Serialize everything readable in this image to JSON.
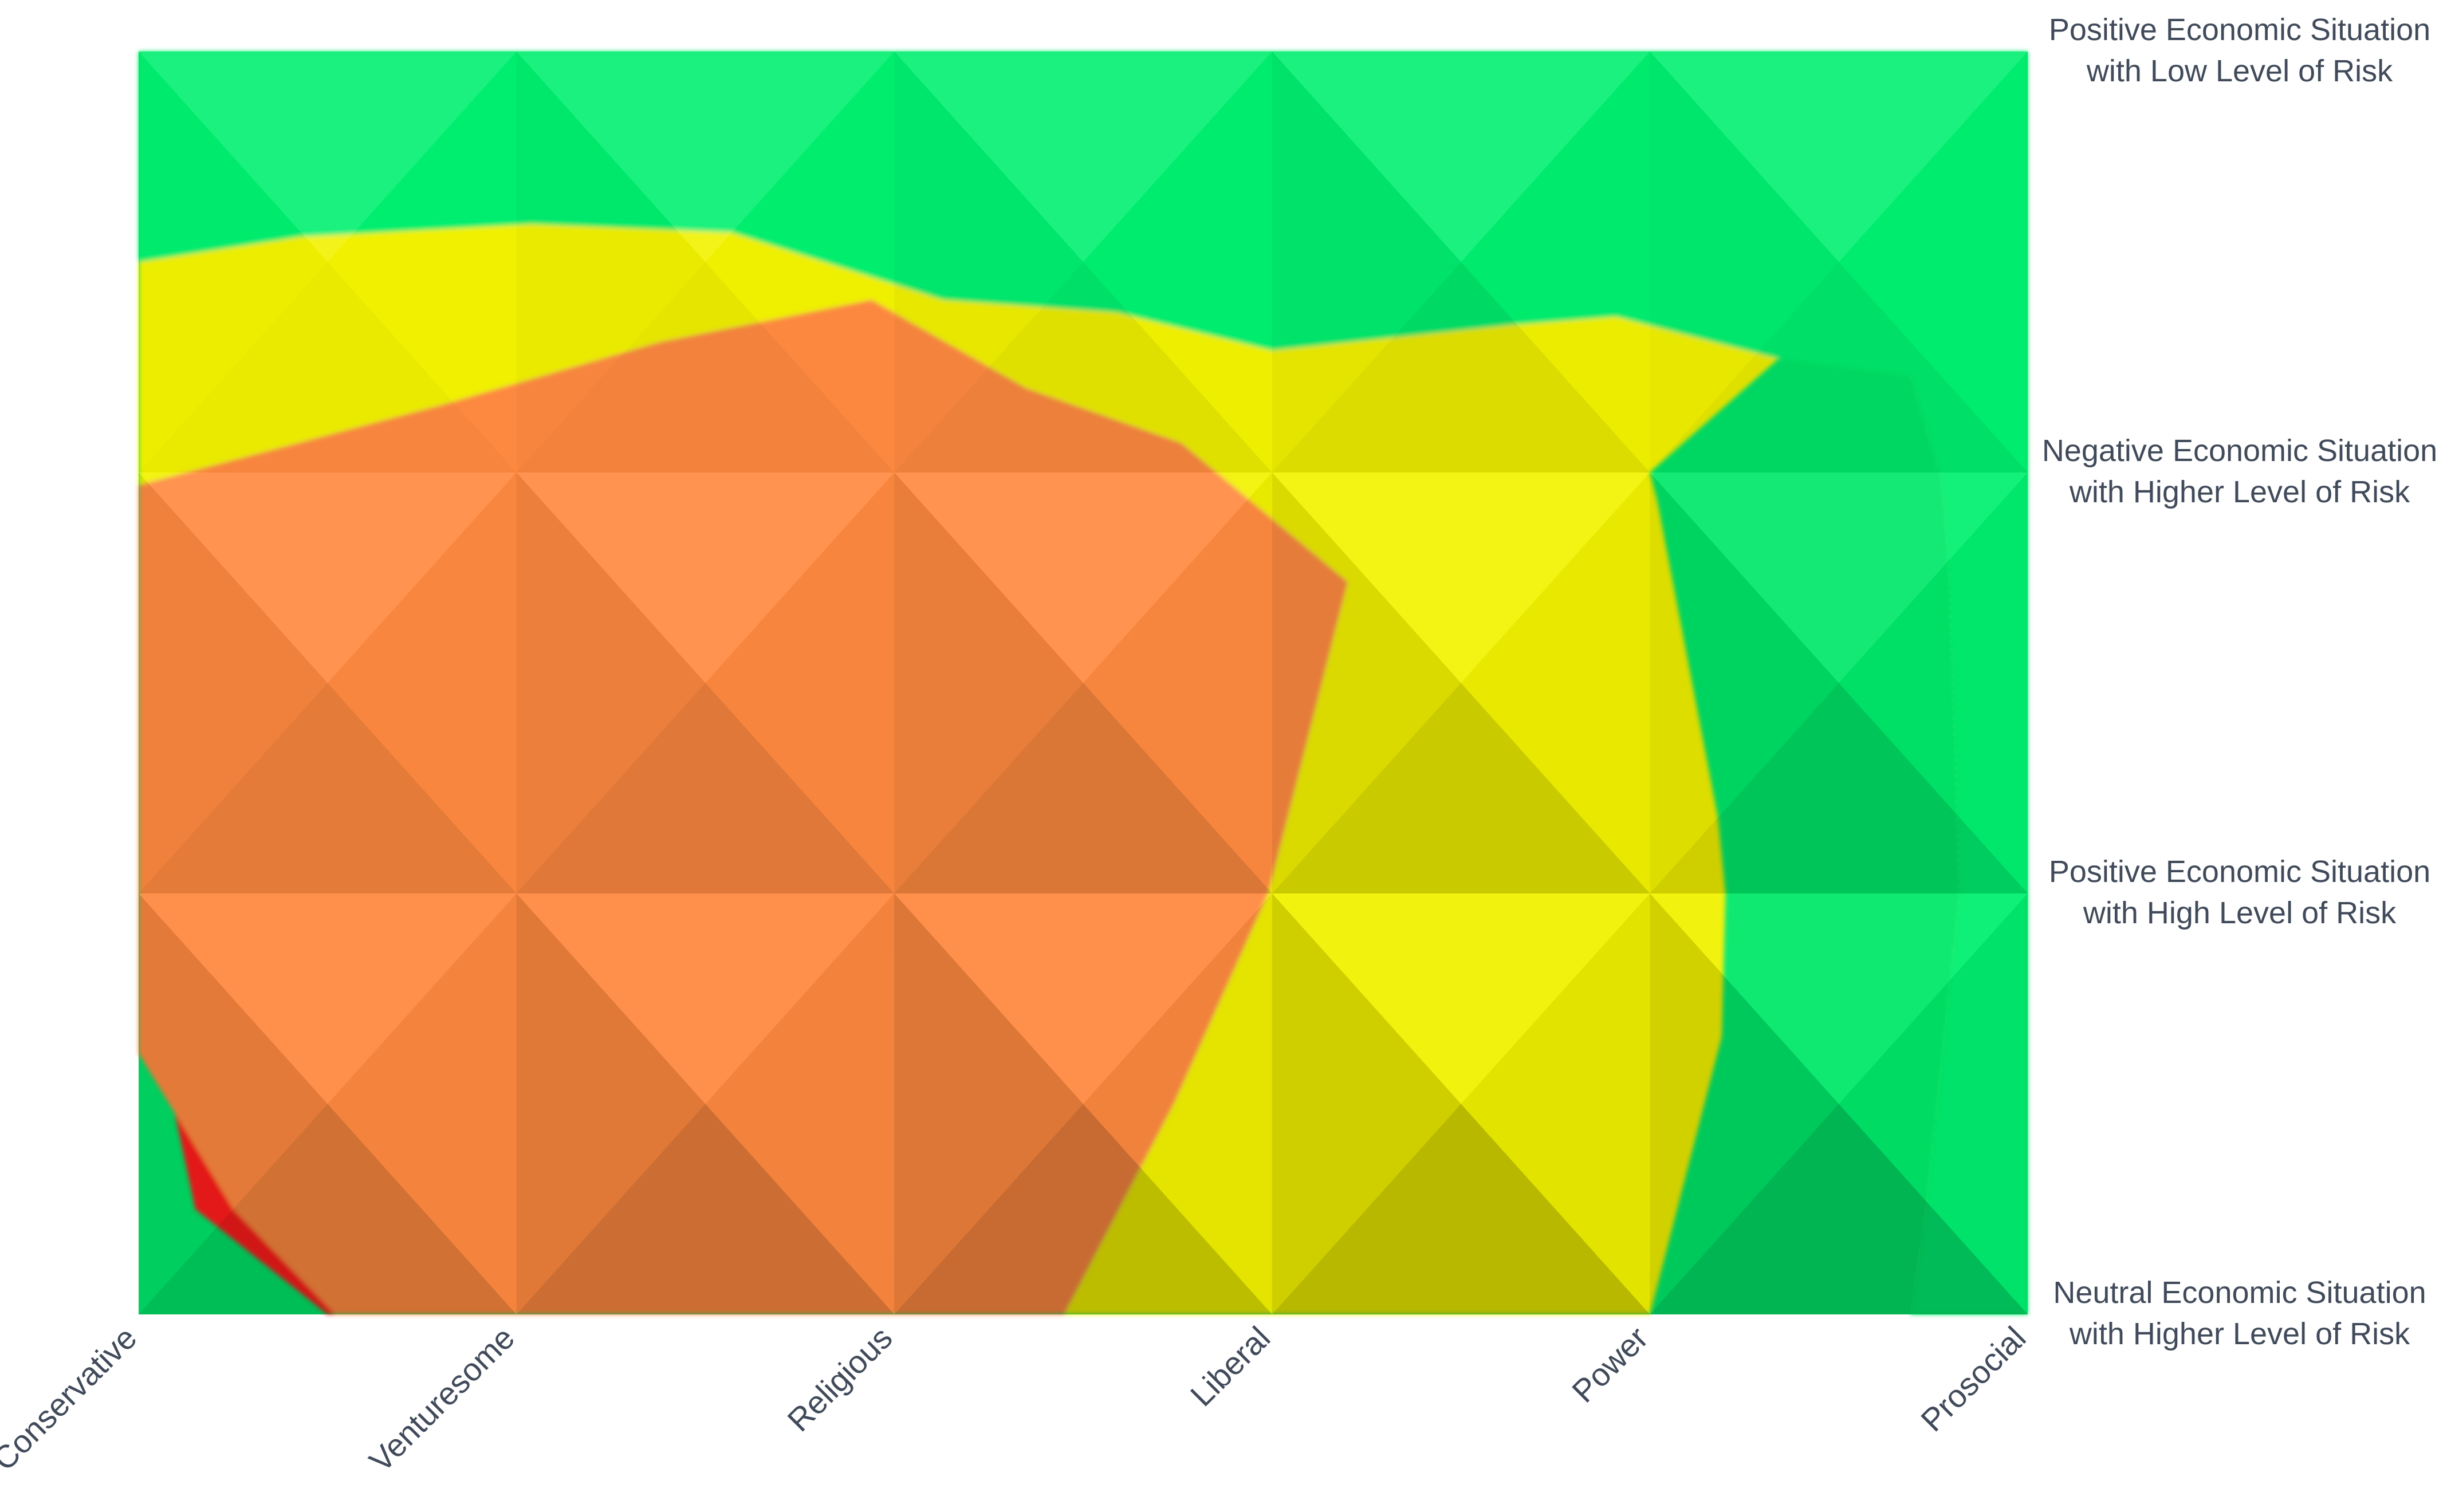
{
  "chart_data": {
    "type": "area",
    "title": "",
    "xlabel": "",
    "ylabel": "",
    "categories": [
      "Conservative",
      "Venturesome",
      "Religious",
      "Liberal",
      "Power",
      "Prosocial"
    ],
    "y_categories": [
      "Neutral Economic Situation with Higher Level of Risk",
      "Positive Economic Situation with High Level of Risk",
      "Negative Economic Situation with Higher Level of Risk",
      "Positive Economic Situation with Low Level of Risk"
    ],
    "y_label_lines": [
      [
        "Neutral Economic Situation",
        "with Higher Level of Risk"
      ],
      [
        "Positive Economic Situation",
        "with High Level of Risk"
      ],
      [
        "Negative Economic Situation",
        "with Higher Level of Risk"
      ],
      [
        "Positive Economic Situation",
        "with Low Level of Risk"
      ]
    ],
    "color_bands": [
      {
        "band": "dark red",
        "color": "#bb0000"
      },
      {
        "band": "red",
        "color": "#ff1a1a"
      },
      {
        "band": "orange",
        "color": "#ff8a40"
      },
      {
        "band": "light orange",
        "color": "#ffa66b"
      },
      {
        "band": "yellow",
        "color": "#f2f200"
      },
      {
        "band": "green",
        "color": "#00f070"
      }
    ],
    "series": [
      {
        "band": "red",
        "points": [
          [
            0,
            0.88
          ],
          [
            0.15,
            0.25
          ],
          [
            0.5,
            0
          ],
          [
            1.01,
            0
          ],
          [
            1.13,
            0.7
          ],
          [
            1.21,
            1.0
          ],
          [
            1.2,
            1.22
          ],
          [
            1.5,
            1.58
          ],
          [
            1.97,
            1.96
          ],
          [
            1.83,
            2.3
          ],
          [
            0.96,
            2.01
          ],
          [
            0.3,
            1.33
          ],
          [
            0,
            0.88
          ]
        ]
      },
      {
        "band": "dark red",
        "points": [
          [
            0.52,
            0
          ],
          [
            1,
            0
          ],
          [
            1,
            2.02
          ],
          [
            0.71,
            2.01
          ],
          [
            0.32,
            1.55
          ],
          [
            0,
            1.27
          ],
          [
            0,
            0.62
          ],
          [
            0.25,
            0.25
          ],
          [
            0.52,
            0
          ]
        ]
      },
      {
        "band": "orange",
        "points": [
          [
            2.45,
            0
          ],
          [
            2.74,
            0.5
          ],
          [
            2.99,
            1.0
          ],
          [
            3.2,
            1.74
          ],
          [
            2.76,
            2.07
          ],
          [
            2.35,
            2.2
          ],
          [
            1.94,
            2.41
          ],
          [
            1.38,
            2.31
          ],
          [
            0.8,
            2.16
          ],
          [
            0,
            1.97
          ],
          [
            0,
            0.62
          ],
          [
            0.25,
            0.25
          ],
          [
            0.52,
            0
          ],
          [
            2.45,
            0
          ]
        ]
      },
      {
        "band": "orange",
        "points": [
          [
            3,
            1.0
          ],
          [
            4,
            0
          ],
          [
            4.19,
            0.66
          ],
          [
            4.2,
            1.0
          ],
          [
            4.18,
            1.18
          ],
          [
            4.02,
            1.93
          ],
          [
            4,
            1.79
          ],
          [
            3.47,
            1.49
          ],
          [
            3.19,
            1.3
          ],
          [
            3,
            1.0
          ]
        ]
      },
      {
        "band": "yellow",
        "points": [
          [
            2.45,
            0
          ],
          [
            4,
            0
          ],
          [
            4.19,
            0.66
          ],
          [
            4.2,
            1.0
          ],
          [
            4.18,
            1.18
          ],
          [
            4.02,
            1.93
          ],
          [
            4,
            2.0
          ],
          [
            4.34,
            2.27
          ],
          [
            4.69,
            2.23
          ],
          [
            4.77,
            1.99
          ],
          [
            4.79,
            1.79
          ],
          [
            4.82,
            1.0
          ],
          [
            4.73,
            0.25
          ],
          [
            4.69,
            0
          ],
          [
            5,
            0
          ],
          [
            5,
            3
          ],
          [
            4.74,
            2.33
          ],
          [
            4.66,
            2.25
          ],
          [
            4.33,
            2.35
          ],
          [
            3.91,
            2.37
          ],
          [
            3.63,
            2.35
          ],
          [
            3.0,
            2.29
          ],
          [
            2.59,
            2.38
          ],
          [
            2.13,
            2.41
          ],
          [
            1.57,
            2.57
          ],
          [
            1.04,
            2.59
          ],
          [
            0.43,
            2.56
          ],
          [
            0,
            2.5
          ],
          [
            0,
            1.97
          ],
          [
            0.8,
            2.16
          ],
          [
            1.38,
            2.31
          ],
          [
            1.94,
            2.41
          ],
          [
            2.35,
            2.2
          ],
          [
            2.76,
            2.07
          ],
          [
            3.2,
            1.74
          ],
          [
            2.99,
            1.0
          ],
          [
            2.74,
            0.5
          ],
          [
            2.45,
            0
          ]
        ]
      },
      {
        "band": "green",
        "points": [
          [
            4.69,
            0
          ],
          [
            4.73,
            0.25
          ],
          [
            4.82,
            1.0
          ],
          [
            4.79,
            1.79
          ],
          [
            4.77,
            1.99
          ],
          [
            4.69,
            2.23
          ],
          [
            4.34,
            2.27
          ],
          [
            3.91,
            2.37
          ],
          [
            3.63,
            2.35
          ],
          [
            3.0,
            2.29
          ],
          [
            2.59,
            2.38
          ],
          [
            2.13,
            2.41
          ],
          [
            1.57,
            2.57
          ],
          [
            1.04,
            2.59
          ],
          [
            0.43,
            2.56
          ],
          [
            0,
            2.5
          ],
          [
            0,
            3
          ],
          [
            5,
            3
          ],
          [
            5,
            0
          ],
          [
            4.69,
            0
          ]
        ]
      }
    ],
    "xlim": [
      0,
      5
    ],
    "ylim": [
      0,
      3
    ],
    "grid": false,
    "legend": "none"
  }
}
